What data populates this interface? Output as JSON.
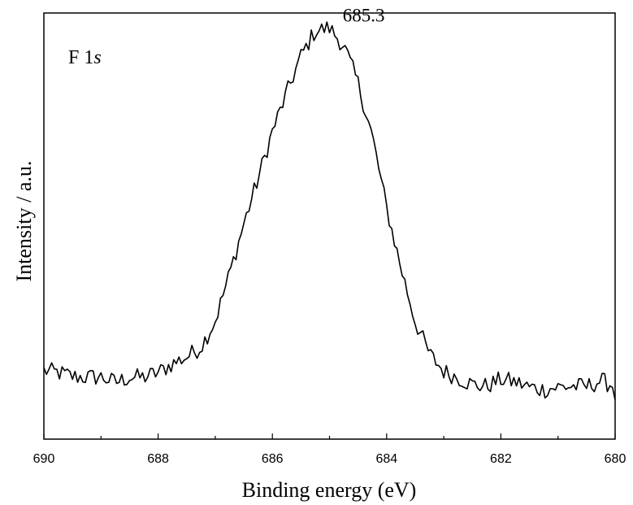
{
  "chart_data": {
    "type": "line",
    "panel_label": "F 1",
    "panel_label_italic": "s",
    "xlabel": "Binding energy (eV)",
    "ylabel": "Intensity / a.u.",
    "xlim": [
      690,
      680
    ],
    "x_reversed": true,
    "ylim": [
      0,
      100
    ],
    "y_ticks_shown": false,
    "grid": false,
    "legend": "none",
    "x_ticks": [
      690,
      688,
      686,
      684,
      682,
      680
    ],
    "x_tick_labels": [
      "690",
      "688",
      "686",
      "684",
      "682",
      "680"
    ],
    "annotations": [
      {
        "text": "1s",
        "x": 685.15,
        "y": 108
      },
      {
        "text": "685.3",
        "x": 684.4,
        "y": 98
      }
    ],
    "series": [
      {
        "color": "#000000",
        "x": [
          690.0,
          689.75,
          689.5,
          689.25,
          689.0,
          688.75,
          688.5,
          688.25,
          688.0,
          687.75,
          687.5,
          687.25,
          687.0,
          686.75,
          686.5,
          686.25,
          686.0,
          685.75,
          685.5,
          685.25,
          685.0,
          684.75,
          684.5,
          684.25,
          684.0,
          683.75,
          683.5,
          683.25,
          683.0,
          682.75,
          682.5,
          682.25,
          682.0,
          681.75,
          681.5,
          681.25,
          681.0,
          680.75,
          680.5,
          680.25,
          680.0
        ],
        "y": [
          16.1,
          15.6,
          14.7,
          14.5,
          14.6,
          13.3,
          14.5,
          14.5,
          15.6,
          17.7,
          19.3,
          21.6,
          27.8,
          38.8,
          50.5,
          61.1,
          72.2,
          81.2,
          89.9,
          95.8,
          96.5,
          92.3,
          83.5,
          71.1,
          54.2,
          40.2,
          27.6,
          20.0,
          15.9,
          14.4,
          12.8,
          12.4,
          14.0,
          13.4,
          12.2,
          11.6,
          12.2,
          12.4,
          12.3,
          13.7,
          12.4
        ]
      }
    ]
  }
}
